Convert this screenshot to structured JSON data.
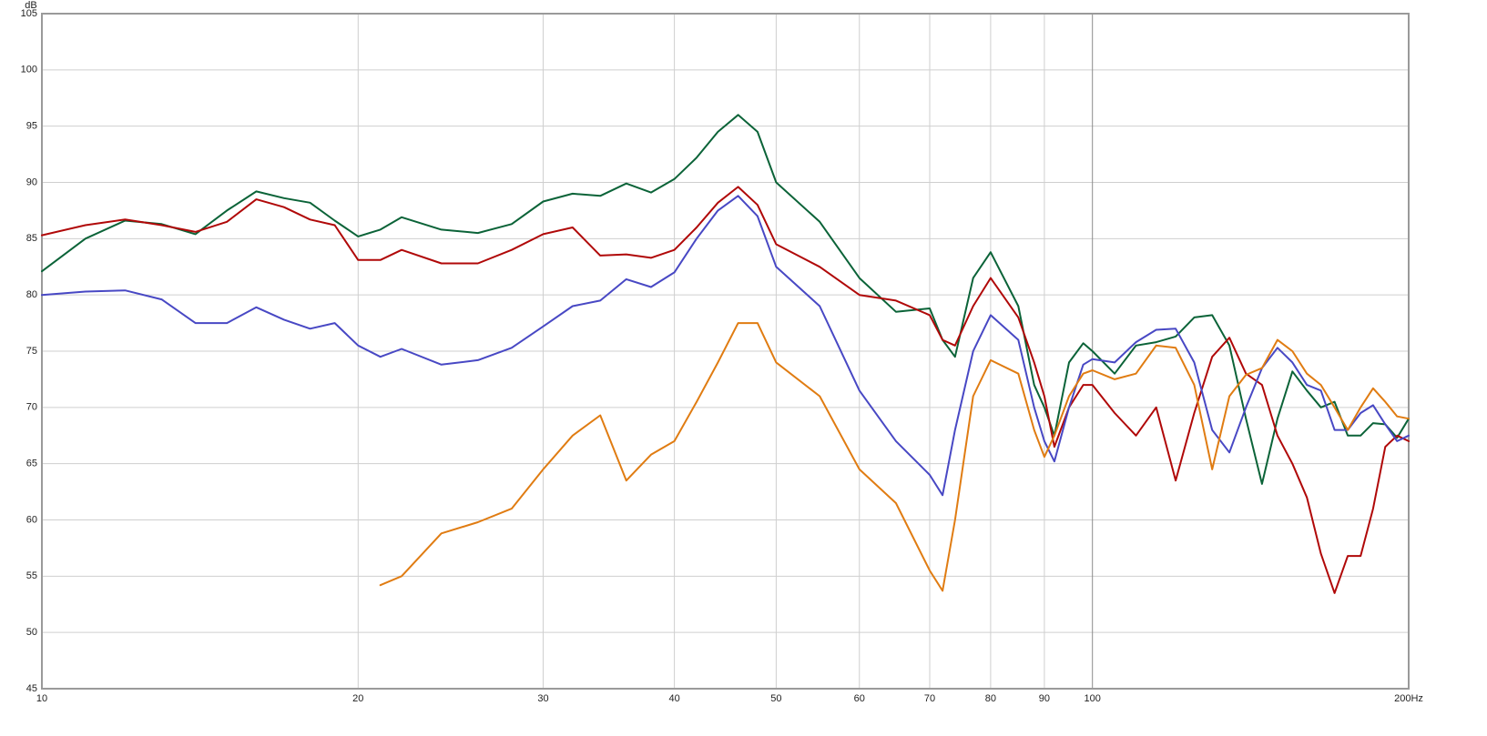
{
  "chart_data": {
    "type": "line",
    "ylabel": "dB",
    "xscale": "log",
    "grid": true,
    "x": [
      10,
      11,
      12,
      13,
      14,
      15,
      16,
      17,
      18,
      19,
      20,
      21,
      22,
      24,
      26,
      28,
      30,
      32,
      34,
      36,
      38,
      40,
      42,
      44,
      46,
      48,
      50,
      55,
      60,
      65,
      70,
      72,
      74,
      77,
      80,
      85,
      88,
      90,
      92,
      95,
      98,
      100,
      105,
      110,
      115,
      120,
      125,
      130,
      135,
      140,
      145,
      150,
      155,
      160,
      165,
      170,
      175,
      180,
      185,
      190,
      195,
      200
    ],
    "xlim": [
      10,
      200
    ],
    "xticks": [
      10,
      20,
      30,
      40,
      50,
      60,
      70,
      80,
      90,
      100,
      {
        "value": 200,
        "label": "200Hz"
      }
    ],
    "ylim": [
      45,
      105
    ],
    "yticks": [
      45,
      50,
      55,
      60,
      65,
      70,
      75,
      80,
      85,
      90,
      95,
      100,
      105
    ],
    "series": [
      {
        "color": "#0b6338",
        "values": [
          82.1,
          85,
          86.6,
          86.3,
          85.4,
          87.5,
          89.2,
          88.6,
          88.2,
          86.6,
          85.2,
          85.8,
          86.9,
          85.8,
          85.5,
          86.3,
          88.3,
          89,
          88.8,
          89.9,
          89.1,
          90.3,
          92.2,
          94.5,
          96,
          94.5,
          90,
          86.5,
          81.5,
          78.5,
          78.8,
          76,
          74.5,
          81.5,
          83.8,
          79,
          72,
          70,
          67.5,
          74,
          75.7,
          75,
          73,
          75.5,
          75.8,
          76.3,
          78,
          78.2,
          75.5,
          69,
          63.2,
          69,
          73.2,
          71.5,
          70,
          70.5,
          67.5,
          67.5,
          68.6,
          68.5,
          67.3,
          69
        ]
      },
      {
        "color": "#b00808",
        "values": [
          85.3,
          86.2,
          86.7,
          86.2,
          85.6,
          86.5,
          88.5,
          87.8,
          86.7,
          86.2,
          83.1,
          83.1,
          84,
          82.8,
          82.8,
          84,
          85.4,
          86,
          83.5,
          83.6,
          83.3,
          84,
          86,
          88.2,
          89.6,
          88,
          84.5,
          82.5,
          80,
          79.5,
          78.2,
          76,
          75.5,
          79,
          81.5,
          78,
          74,
          71,
          66.5,
          70,
          72,
          72,
          69.5,
          67.5,
          70,
          63.5,
          69.5,
          74.5,
          76.2,
          73,
          72,
          67.5,
          65,
          62,
          57,
          53.5,
          56.8,
          56.8,
          61,
          66.5,
          67.5,
          67
        ]
      },
      {
        "color": "#4848c4",
        "values": [
          80,
          80.3,
          80.4,
          79.6,
          77.5,
          77.5,
          78.9,
          77.8,
          77,
          77.5,
          75.5,
          74.5,
          75.2,
          73.8,
          74.2,
          75.3,
          77.2,
          79,
          79.5,
          81.4,
          80.7,
          82,
          85,
          87.5,
          88.8,
          87,
          82.5,
          79,
          71.5,
          67,
          64,
          62.2,
          68,
          75,
          78.2,
          76,
          70,
          67,
          65.2,
          70,
          73.8,
          74.3,
          74,
          75.8,
          76.9,
          77,
          74,
          68,
          66,
          70,
          73.5,
          75.3,
          74,
          72,
          71.5,
          68,
          68,
          69.5,
          70.2,
          68.5,
          67,
          67.5
        ]
      },
      {
        "color": "#e07c12",
        "values": [
          null,
          null,
          null,
          null,
          null,
          null,
          null,
          null,
          null,
          null,
          null,
          54.2,
          55,
          58.8,
          59.8,
          61,
          64.5,
          67.5,
          69.3,
          63.5,
          65.8,
          67,
          70.5,
          74,
          77.5,
          77.5,
          74,
          71,
          64.5,
          61.5,
          55.5,
          53.7,
          60,
          71,
          74.2,
          73,
          68,
          65.6,
          67.5,
          71,
          73,
          73.3,
          72.5,
          73,
          75.5,
          75.3,
          72,
          64.5,
          71,
          72.9,
          73.5,
          76,
          75,
          73,
          72,
          70,
          68,
          70,
          71.7,
          70.5,
          69.2,
          69
        ]
      }
    ]
  }
}
